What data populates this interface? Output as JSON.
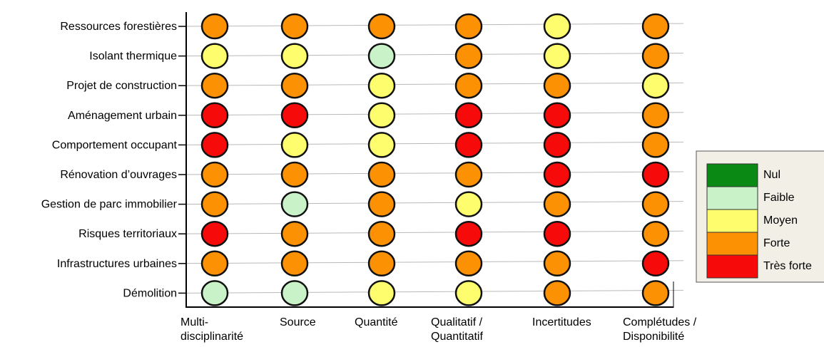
{
  "chart_data": {
    "type": "heatmap",
    "rows": [
      "Ressources forestières",
      "Isolant thermique",
      "Projet de construction",
      "Aménagement urbain",
      "Comportement occupant",
      "Rénovation d’ouvrages",
      "Gestion de parc immobilier",
      "Risques territoriaux",
      "Infrastructures urbaines",
      "Démolition"
    ],
    "columns": [
      [
        "Multi-",
        "disciplinarité"
      ],
      [
        "Source"
      ],
      [
        "Quantité"
      ],
      [
        "Qualitatif /",
        "Quantitatif"
      ],
      [
        "Incertitudes"
      ],
      [
        "Complétudes /",
        "Disponibilité"
      ]
    ],
    "levels": [
      {
        "label": "Nul",
        "color": "#0a8a14"
      },
      {
        "label": "Faible",
        "color": "#c9f2c9"
      },
      {
        "label": "Moyen",
        "color": "#fdfd6e"
      },
      {
        "label": "Forte",
        "color": "#fb9103"
      },
      {
        "label": "Très forte",
        "color": "#f60a0a"
      }
    ],
    "values": [
      [
        3,
        3,
        3,
        3,
        2,
        3
      ],
      [
        2,
        2,
        1,
        3,
        2,
        3
      ],
      [
        3,
        3,
        2,
        3,
        3,
        2
      ],
      [
        4,
        4,
        2,
        4,
        4,
        3
      ],
      [
        4,
        2,
        2,
        4,
        4,
        3
      ],
      [
        3,
        3,
        3,
        3,
        4,
        4
      ],
      [
        3,
        1,
        3,
        2,
        3,
        3
      ],
      [
        4,
        3,
        3,
        4,
        4,
        3
      ],
      [
        3,
        3,
        3,
        3,
        3,
        4
      ],
      [
        1,
        1,
        2,
        2,
        3,
        3
      ]
    ],
    "grid": true,
    "legend_position": "right"
  }
}
